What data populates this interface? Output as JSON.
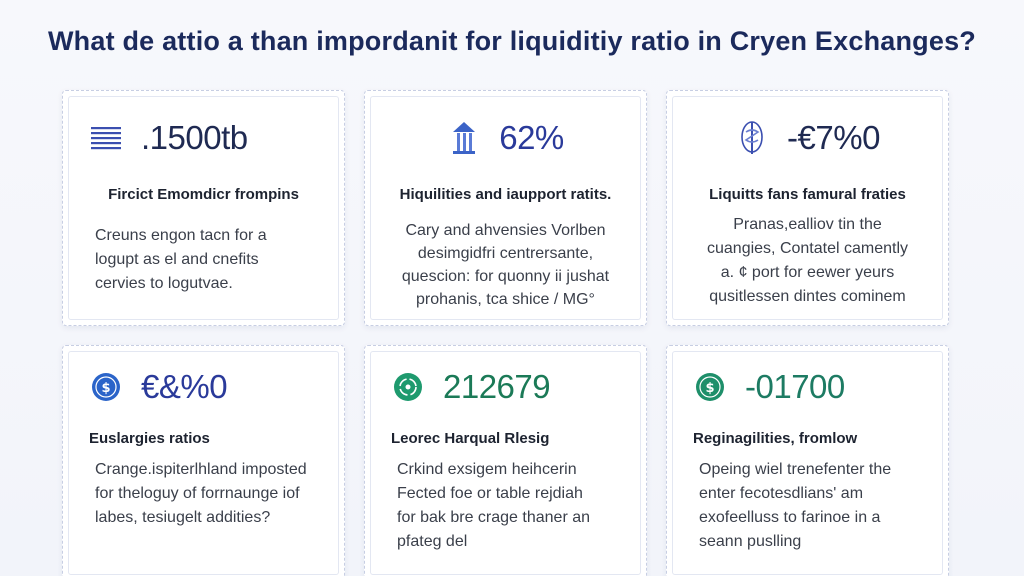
{
  "title": "What de attio a than impordanit for liquiditiy ratio in Cryen Exchanges?",
  "cards": [
    {
      "icon": "document-lines-icon",
      "value": ".1500tb",
      "heading": "Fircict Emomdicr frompins",
      "lines": [
        "Creuns engon tacn for a",
        "logupt as el and cnefits",
        "cervies to logutvae."
      ],
      "accent": "#2a3a9a"
    },
    {
      "icon": "pillar-building-icon",
      "value": "62%",
      "heading": "Hiquilities and iaupport ratits.",
      "lines": [
        "Cary and ahvensies Vorlben",
        "desimgidfri centrersante,",
        "quescion: for quonny ii jushat",
        "prohanis, tca shice / MG°"
      ],
      "accent": "#2a3a9a"
    },
    {
      "icon": "medical-staff-icon",
      "value": "-€7%0",
      "heading": "Liquitts fans famural fraties",
      "lines": [
        "Pranas,ealliov tin the",
        "cuangies, Contatel camently",
        "a. ¢ port for eewer yeurs",
        "qusitlessen dintes cominem"
      ],
      "accent": "#1f2a52"
    },
    {
      "icon": "dollar-coin-icon",
      "value": "€&%0",
      "heading": "Euslargies ratios",
      "lines": [
        "Crange.ispiterlhland imposted",
        "for theloguy of forrnaunge iof",
        "labes, tesiugelt addities?"
      ],
      "accent": "#2a3a9a"
    },
    {
      "icon": "recycle-coin-icon",
      "value": "212679",
      "heading": "Leorec Harqual Rlesig",
      "lines": [
        "Crkind exsigem heihcerin",
        "Fected foe or table rejdiah",
        "for bak bre crage thaner an",
        "pfateg del"
      ],
      "accent": "#1b7a57"
    },
    {
      "icon": "dollar-coin-icon",
      "value": "-01700",
      "heading": "Reginagilities, fromlow",
      "lines": [
        "Opeing wiel trenefenter the",
        "enter fecotesdlians' am",
        "exofeelluss to farinoe in a",
        "seann puslling"
      ],
      "accent": "#1d7b63"
    }
  ]
}
